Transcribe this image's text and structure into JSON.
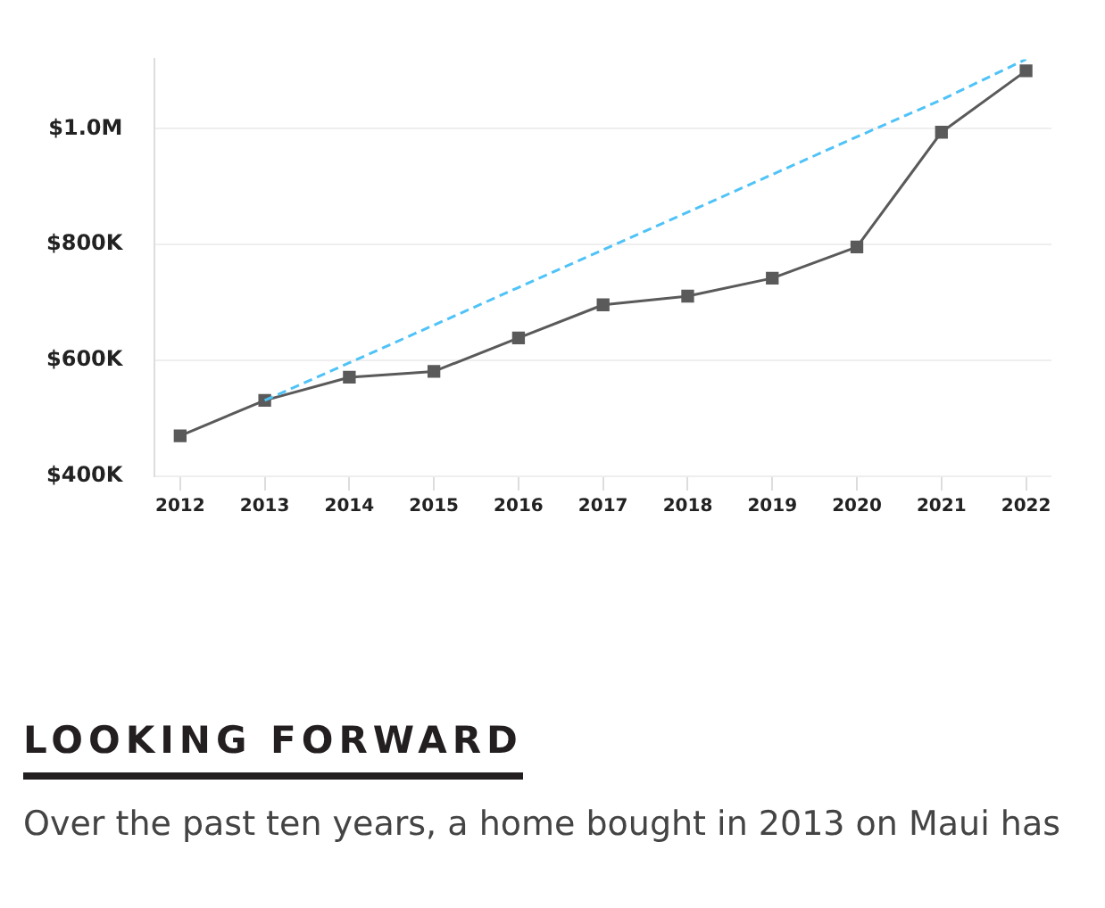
{
  "chart_data": {
    "type": "line",
    "categories": [
      "2012",
      "2013",
      "2014",
      "2015",
      "2016",
      "2017",
      "2018",
      "2019",
      "2020",
      "2021",
      "2022"
    ],
    "series": [
      {
        "color": "#5a5a5a",
        "values": [
          470000,
          531000,
          571000,
          581000,
          639000,
          696000,
          711000,
          742000,
          796000,
          994000,
          1100000
        ],
        "marker": "square",
        "line_style": "solid"
      },
      {
        "color": "#4fc3f7",
        "values": [
          null,
          531000,
          596000,
          661000,
          726000,
          791000,
          856000,
          921000,
          986000,
          1050000,
          1120000
        ],
        "marker": "none",
        "line_style": "dashed"
      }
    ],
    "ylim": [
      400000,
      1120000
    ],
    "yticks": [
      {
        "value": 400000,
        "label": "$400K"
      },
      {
        "value": 600000,
        "label": "$600K"
      },
      {
        "value": 800000,
        "label": "$800K"
      },
      {
        "value": 1000000,
        "label": "$1.0M"
      }
    ],
    "grid": "y",
    "legend": false,
    "annotations": [
      "LOOKING FORWARD",
      "Over the past ten years, a home bought in 2013 on Maui has"
    ]
  }
}
